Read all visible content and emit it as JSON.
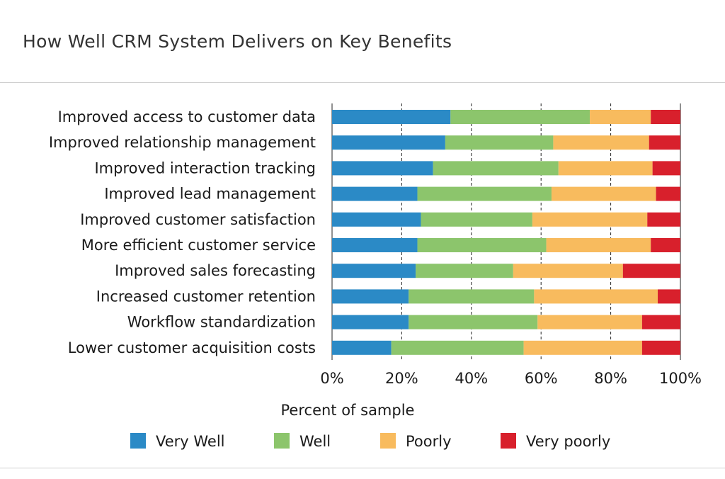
{
  "chart_data": {
    "type": "bar",
    "orientation": "horizontal",
    "stacked": true,
    "title": "How Well CRM System Delivers on Key Benefits",
    "xlabel": "Percent of sample",
    "ylabel": "",
    "xlim": [
      0,
      100
    ],
    "x_ticks": [
      "0%",
      "20%",
      "40%",
      "60%",
      "80%",
      "100%"
    ],
    "grid": "vertical dashed",
    "legend_position": "bottom",
    "categories": [
      "Improved access to customer data",
      "Improved relationship management",
      "Improved interaction tracking",
      "Improved lead management",
      "Improved customer satisfaction",
      "More efficient customer service",
      "Improved sales forecasting",
      "Increased customer retention",
      "Workflow standardization",
      "Lower customer acquisition costs"
    ],
    "series": [
      {
        "name": "Very Well",
        "color": "#2b8ac6",
        "values": [
          34,
          32.5,
          29,
          24.5,
          25.5,
          24.5,
          24,
          22,
          22,
          17
        ]
      },
      {
        "name": "Well",
        "color": "#8cc56c",
        "values": [
          40,
          31,
          36,
          38.5,
          32,
          37,
          28,
          36,
          37,
          38
        ]
      },
      {
        "name": "Poorly",
        "color": "#f8bb5e",
        "values": [
          17.5,
          27.5,
          27,
          30,
          33,
          30,
          31.5,
          35.5,
          30,
          34
        ]
      },
      {
        "name": "Very poorly",
        "color": "#d8202c",
        "values": [
          8.5,
          9,
          8,
          7,
          9.5,
          8.5,
          16.5,
          6.5,
          11,
          11
        ]
      }
    ]
  }
}
